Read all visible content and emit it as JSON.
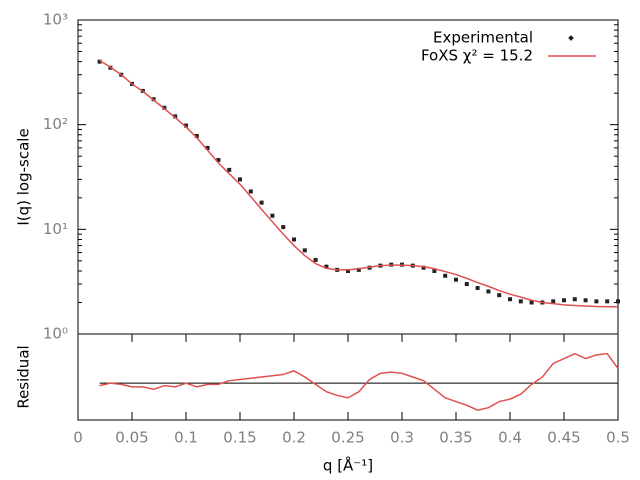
{
  "chart_data": [
    {
      "type": "line",
      "ylabel": "I(q) log-scale",
      "ylog": true,
      "xlim": [
        0,
        0.5
      ],
      "ylim": [
        1,
        1000
      ],
      "yticks": [
        {
          "value": 1,
          "label": "10⁰"
        },
        {
          "value": 10,
          "label": "10¹"
        },
        {
          "value": 100,
          "label": "10²"
        },
        {
          "value": 1000,
          "label": "10³"
        }
      ],
      "legend": "top-right",
      "x": [
        0.02,
        0.03,
        0.04,
        0.05,
        0.06,
        0.07,
        0.08,
        0.09,
        0.1,
        0.11,
        0.12,
        0.13,
        0.14,
        0.15,
        0.16,
        0.17,
        0.18,
        0.19,
        0.2,
        0.21,
        0.22,
        0.23,
        0.24,
        0.25,
        0.26,
        0.27,
        0.28,
        0.29,
        0.3,
        0.31,
        0.32,
        0.33,
        0.34,
        0.35,
        0.36,
        0.37,
        0.38,
        0.39,
        0.4,
        0.41,
        0.42,
        0.43,
        0.44,
        0.45,
        0.46,
        0.47,
        0.48,
        0.49,
        0.5
      ],
      "series": [
        {
          "name": "Experimental",
          "color": "#222222",
          "style": "points",
          "values": [
            400,
            350,
            300,
            245,
            210,
            175,
            145,
            120,
            98,
            78,
            60,
            46,
            37,
            30,
            23,
            18,
            13.5,
            10.5,
            8,
            6.3,
            5.1,
            4.4,
            4.1,
            4.0,
            4.1,
            4.3,
            4.5,
            4.6,
            4.6,
            4.5,
            4.3,
            4.0,
            3.6,
            3.3,
            3.0,
            2.75,
            2.55,
            2.35,
            2.15,
            2.05,
            2.0,
            2.0,
            2.05,
            2.1,
            2.15,
            2.1,
            2.05,
            2.05,
            2.05
          ]
        },
        {
          "name": "FoXS χ² = 15.2",
          "color": "#e05050",
          "style": "line",
          "values": [
            410,
            355,
            300,
            245,
            208,
            172,
            142,
            117,
            95,
            75,
            57,
            43,
            34,
            27,
            20.5,
            15.5,
            11.8,
            9,
            7,
            5.6,
            4.7,
            4.25,
            4.1,
            4.1,
            4.2,
            4.35,
            4.5,
            4.55,
            4.55,
            4.5,
            4.4,
            4.2,
            3.95,
            3.7,
            3.4,
            3.1,
            2.85,
            2.6,
            2.4,
            2.25,
            2.1,
            2.0,
            1.95,
            1.9,
            1.87,
            1.85,
            1.83,
            1.82,
            1.82
          ]
        }
      ]
    },
    {
      "type": "line",
      "ylabel": "Residual",
      "xlabel": "q [Å⁻¹]",
      "xlim": [
        0,
        0.5
      ],
      "ylim": [
        -3,
        4
      ],
      "reference_line": 0,
      "xticks": [
        0,
        0.05,
        0.1,
        0.15,
        0.2,
        0.25,
        0.3,
        0.35,
        0.4,
        0.45,
        0.5
      ],
      "x": [
        0.02,
        0.03,
        0.04,
        0.05,
        0.06,
        0.07,
        0.08,
        0.09,
        0.1,
        0.11,
        0.12,
        0.13,
        0.14,
        0.15,
        0.16,
        0.17,
        0.18,
        0.19,
        0.2,
        0.21,
        0.22,
        0.23,
        0.24,
        0.25,
        0.26,
        0.27,
        0.28,
        0.29,
        0.3,
        0.31,
        0.32,
        0.33,
        0.34,
        0.35,
        0.36,
        0.37,
        0.38,
        0.39,
        0.4,
        0.41,
        0.42,
        0.43,
        0.44,
        0.45,
        0.46,
        0.47,
        0.48,
        0.49,
        0.5
      ],
      "series": [
        {
          "color": "#e05050",
          "style": "line",
          "values": [
            -0.2,
            0,
            -0.1,
            -0.3,
            -0.3,
            -0.5,
            -0.2,
            -0.3,
            0,
            -0.3,
            -0.1,
            -0.1,
            0.2,
            0.3,
            0.4,
            0.5,
            0.6,
            0.7,
            1.0,
            0.5,
            -0.1,
            -0.7,
            -1.0,
            -1.2,
            -0.7,
            0.3,
            0.8,
            0.9,
            0.8,
            0.5,
            0.2,
            -0.5,
            -1.2,
            -1.5,
            -1.8,
            -2.2,
            -2.0,
            -1.5,
            -1.3,
            -0.9,
            -0.1,
            0.5,
            1.6,
            2.0,
            2.4,
            2.0,
            2.3,
            2.4,
            1.2
          ]
        }
      ]
    }
  ]
}
